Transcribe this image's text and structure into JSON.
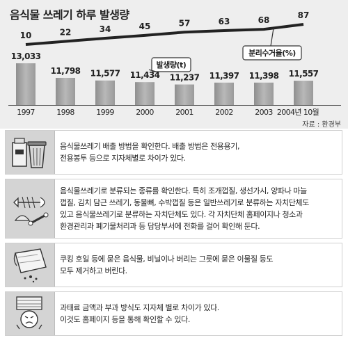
{
  "header": {
    "title": "음식물 쓰레기 하루 발생량",
    "source": "자료 : 환경부"
  },
  "chart_data": {
    "type": "bar",
    "title": "음식물 쓰레기 하루 발생량",
    "categories": [
      "1997",
      "1998",
      "1999",
      "2000",
      "2001",
      "2002",
      "2003",
      "2004년 10월"
    ],
    "series": [
      {
        "name": "발생량(t)",
        "type": "bar",
        "values": [
          13033,
          11798,
          11577,
          11434,
          11237,
          11397,
          11398,
          11557
        ],
        "labels": [
          "13,033",
          "11,798",
          "11,577",
          "11,434",
          "11,237",
          "11,397",
          "11,398",
          "11,557"
        ],
        "color": "#a6a6a6"
      },
      {
        "name": "분리수거율(%)",
        "type": "line",
        "values": [
          10,
          22,
          34,
          45,
          57,
          63,
          68,
          87
        ],
        "color": "#222222"
      }
    ],
    "legend": [
      "발생량(t)",
      "분리수거율(%)"
    ]
  },
  "tips": [
    {
      "icon": "trash-bin-icon",
      "lines": [
        "음식물쓰레기 배출 방법을 확인한다. 배출 방법은 전용용기,",
        "전용봉투 등으로 지자체별로 차이가 있다."
      ]
    },
    {
      "icon": "fish-bones-icon",
      "lines": [
        "음식물쓰레기로 분류되는 종류를 확인한다. 특히 조개껍질, 생선가시, 양파나 마늘",
        "껍질, 김치 담근 쓰레기, 동물뼈, 수박껍질 등은 일반쓰레기로 분류하는 자치단체도",
        "있고 음식물쓰레기로 분류하는 자치단체도 있다. 각 자치단체 홈페이지나 청소과",
        "환경관리과 폐기물처리과 등 담당부서에 전화를 걸어 확인해 둔다."
      ]
    },
    {
      "icon": "wrapping-foil-icon",
      "lines": [
        "쿠킹 호일 등에 묻은 음식물, 비닐이나 버리는 그릇에 묻은 이물질 등도",
        "모두 제거하고 버린다."
      ]
    },
    {
      "icon": "worried-person-icon",
      "lines": [
        "과태료 금액과 부과 방식도 지자체 별로 차이가 있다.",
        "이것도 홈페이지 등을 통해 확인할 수 있다."
      ]
    }
  ]
}
